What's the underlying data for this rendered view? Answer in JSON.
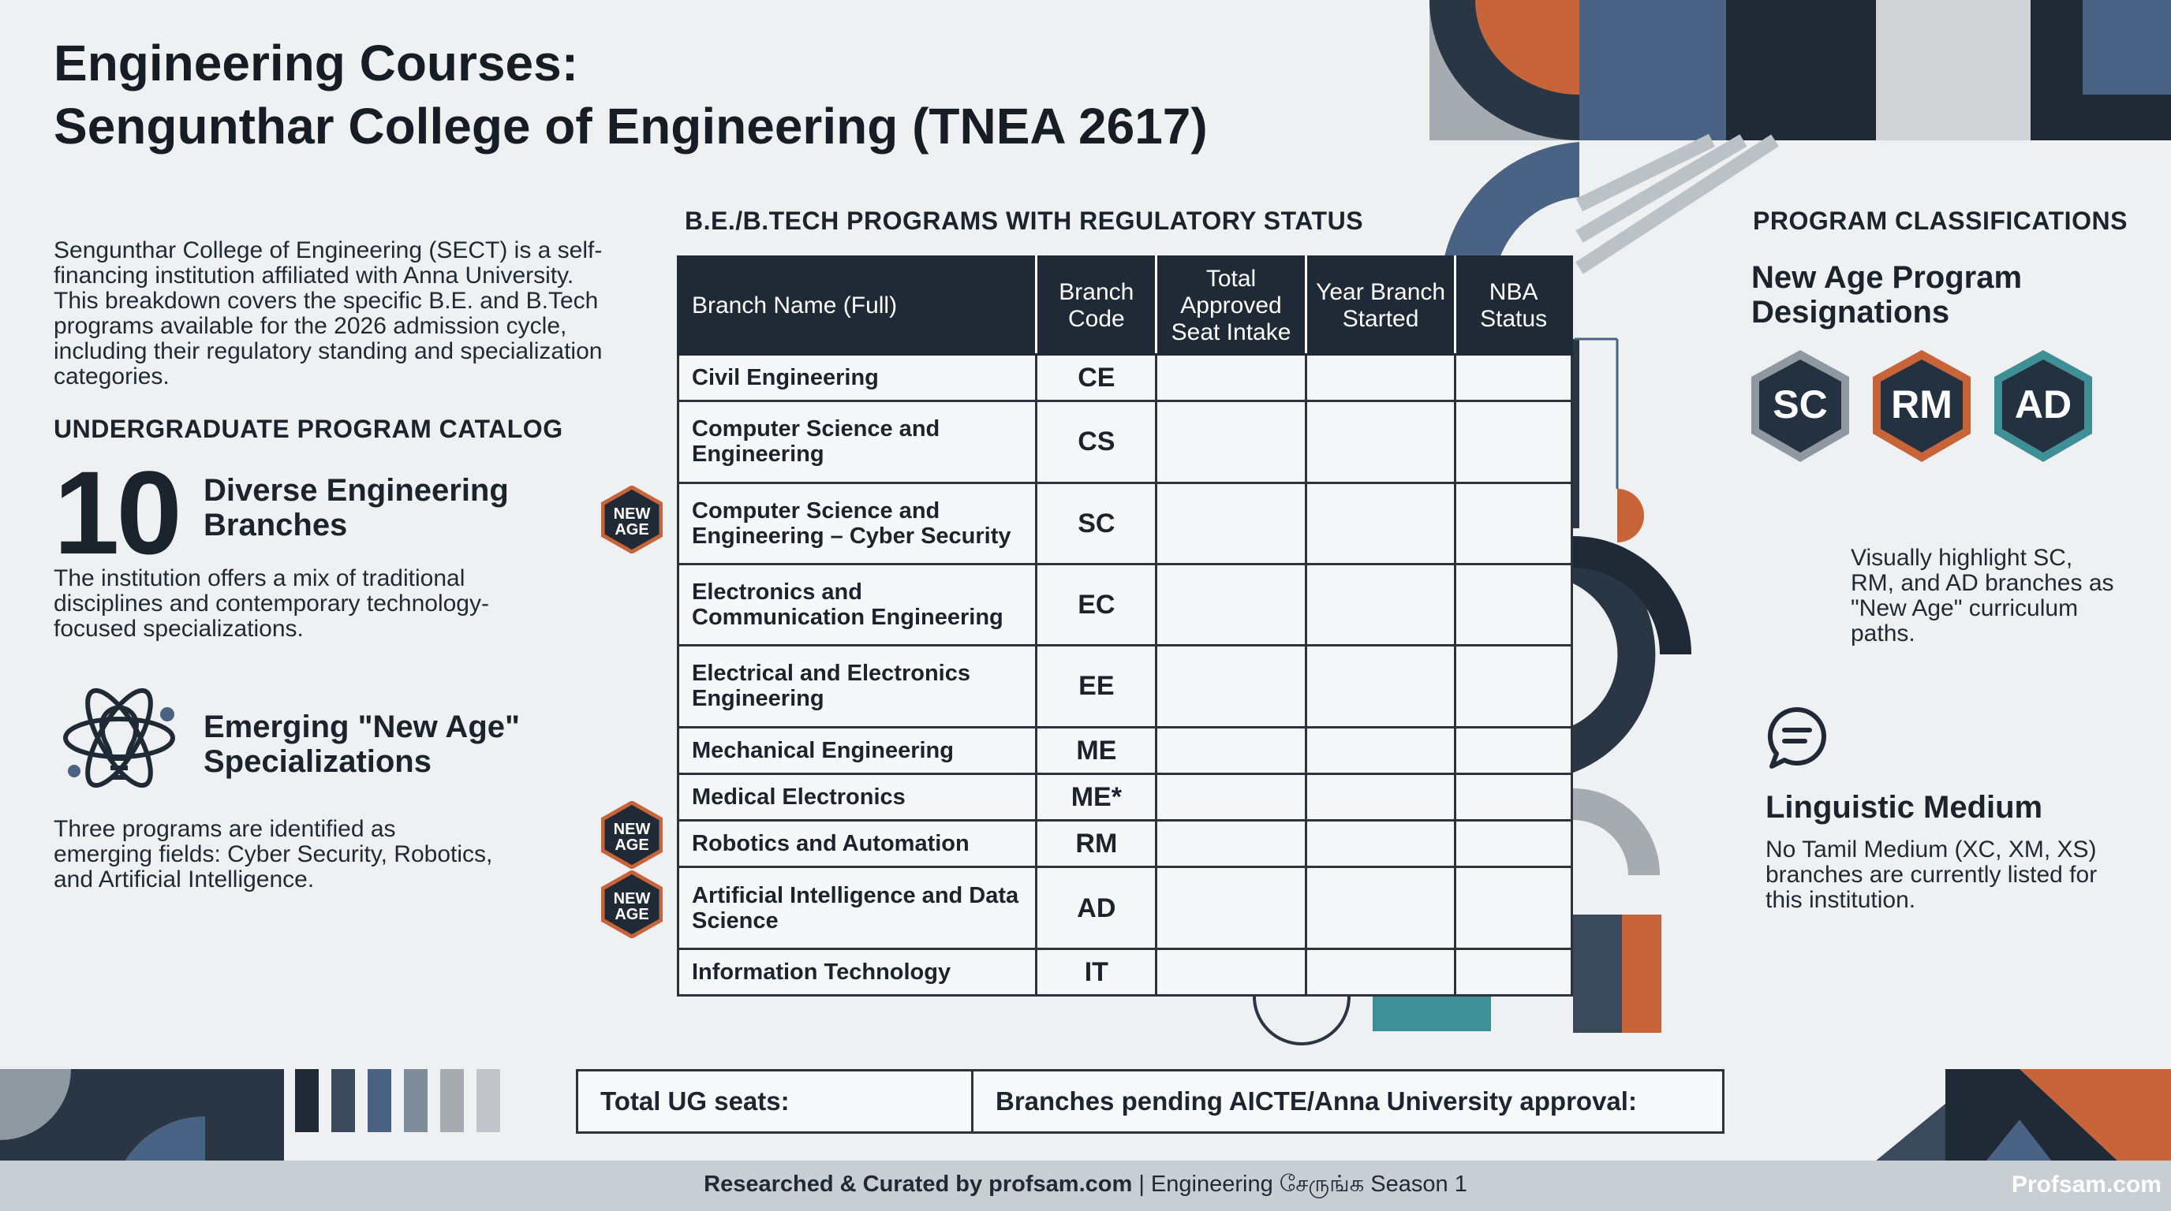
{
  "title": {
    "line1": "Engineering Courses:",
    "line2": "Sengunthar College of Engineering (TNEA 2617)"
  },
  "intro": "Sengunthar College of Engineering (SECT) is a self-financing institution affiliated with Anna University. This breakdown covers the specific B.E. and B.Tech programs available for the 2026 admission cycle, including their regulatory standing and specialization categories.",
  "catalog": {
    "label": "UNDERGRADUATE PROGRAM CATALOG",
    "count": "10",
    "count_title": "Diverse Engineering Branches",
    "count_text": "The institution offers a mix of traditional disciplines and contemporary technology-focused specializations.",
    "emerging_title": "Emerging \"New Age\" Specializations",
    "emerging_text": "Three programs are identified as emerging fields: Cyber Security, Robotics, and Artificial Intelligence."
  },
  "table": {
    "label": "B.E./B.TECH PROGRAMS WITH REGULATORY STATUS",
    "headers": [
      "Branch Name (Full)",
      "Branch Code",
      "Total Approved Seat Intake",
      "Year Branch Started",
      "NBA Status"
    ],
    "rows": [
      {
        "name": "Civil Engineering",
        "code": "CE",
        "intake": "",
        "year": "",
        "nba": ""
      },
      {
        "name": "Computer Science and Engineering",
        "code": "CS",
        "intake": "",
        "year": "",
        "nba": ""
      },
      {
        "name": "Computer Science and Engineering – Cyber Security",
        "code": "SC",
        "intake": "",
        "year": "",
        "nba": ""
      },
      {
        "name": "Electronics and Communication Engineering",
        "code": "EC",
        "intake": "",
        "year": "",
        "nba": ""
      },
      {
        "name": "Electrical and Electronics Engineering",
        "code": "EE",
        "intake": "",
        "year": "",
        "nba": ""
      },
      {
        "name": "Mechanical Engineering",
        "code": "ME",
        "intake": "",
        "year": "",
        "nba": ""
      },
      {
        "name": "Medical Electronics",
        "code": "ME*",
        "intake": "",
        "year": "",
        "nba": ""
      },
      {
        "name": "Robotics and Automation",
        "code": "RM",
        "intake": "",
        "year": "",
        "nba": ""
      },
      {
        "name": "Artificial Intelligence and Data Science",
        "code": "AD",
        "intake": "",
        "year": "",
        "nba": ""
      },
      {
        "name": "Information Technology",
        "code": "IT",
        "intake": "",
        "year": "",
        "nba": ""
      }
    ],
    "new_age_badge": {
      "line1": "NEW",
      "line2": "AGE"
    }
  },
  "summary": {
    "total_seats_label": "Total UG seats:",
    "pending_label": "Branches pending AICTE/Anna University approval:"
  },
  "classifications": {
    "label": "PROGRAM CLASSIFICATIONS",
    "title": "New Age Program Designations",
    "hexes": [
      "SC",
      "RM",
      "AD"
    ],
    "hex_colors": [
      "#8f97a0",
      "#c8643a",
      "#3f8f96"
    ],
    "note": "Visually highlight SC, RM, and AD branches as \"New Age\" curriculum paths.",
    "medium_title": "Linguistic Medium",
    "medium_text": "No Tamil Medium (XC, XM, XS) branches are currently listed for this institution."
  },
  "footer": {
    "credit": "Researched & Curated by profsam.com",
    "separator": " | ",
    "series": "Engineering சேருங்க Season 1",
    "brand": "Profsam.com"
  },
  "colors": {
    "navy": "#1f2a36",
    "slate_blue": "#4a6283",
    "orange": "#c8643a",
    "teal": "#3f8f96",
    "gray": "#9aa1a8"
  }
}
